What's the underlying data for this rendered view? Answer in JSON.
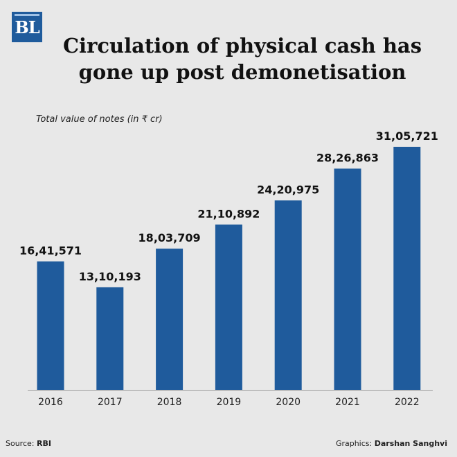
{
  "logo": {
    "text": "BL"
  },
  "title": "Circulation of physical cash has gone up post demonetisation",
  "footer": {
    "source_label": "Source:",
    "source_value": "RBI",
    "credit_label": "Graphics:",
    "credit_value": "Darshan Sanghvi"
  },
  "colors": {
    "bar": "#1f5b9c",
    "background": "#e8e8e8"
  },
  "chart_data": {
    "type": "bar",
    "subtitle": "Total value of notes (in ₹ cr)",
    "categories": [
      "2016",
      "2017",
      "2018",
      "2019",
      "2020",
      "2021",
      "2022"
    ],
    "values": [
      1641571,
      1310193,
      1803709,
      2110892,
      2420975,
      2826863,
      3105721
    ],
    "value_labels": [
      "16,41,571",
      "13,10,193",
      "18,03,709",
      "21,10,892",
      "24,20,975",
      "28,26,863",
      "31,05,721"
    ],
    "ylim": [
      0,
      3300000
    ],
    "grid": false,
    "legend": "none"
  }
}
